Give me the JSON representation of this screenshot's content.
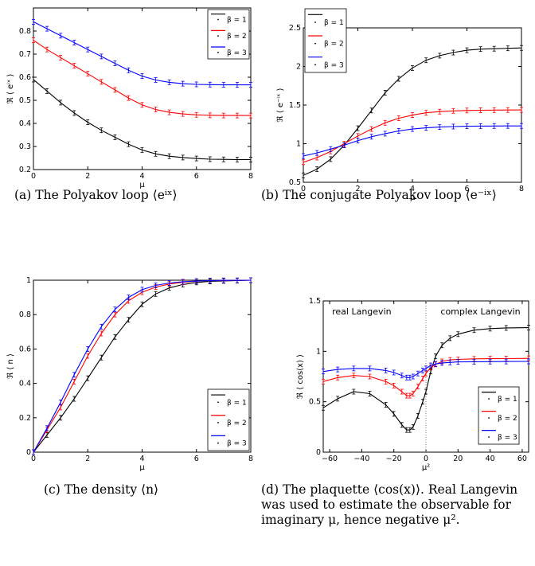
{
  "captions": {
    "a": "(a) The Polyakov loop ⟨eⁱˣ⟩",
    "b": "(b) The conjugate Polyakov loop ⟨e⁻ⁱˣ⟩",
    "c": "(c) The density ⟨n⟩",
    "d": "(d) The plaquette ⟨cos(x)⟩. Real Langevin was used to estimate the observable for imaginary μ, hence negative μ²."
  },
  "chart_data": [
    {
      "id": "a",
      "type": "line",
      "title": "",
      "xlabel": "μ",
      "ylabel": "ℜ ⟨ eⁱˣ ⟩",
      "xlim": [
        0,
        8
      ],
      "ylim": [
        0.2,
        0.9
      ],
      "xticks": [
        0,
        2,
        4,
        6,
        8
      ],
      "yticks": [
        0.2,
        0.3,
        0.4,
        0.5,
        0.6,
        0.7,
        0.8
      ],
      "legend": "top-right",
      "grid": false,
      "x": [
        0,
        0.5,
        1,
        1.5,
        2,
        2.5,
        3,
        3.5,
        4,
        4.5,
        5,
        5.5,
        6,
        6.5,
        7,
        7.5,
        8
      ],
      "series": [
        {
          "name": "β = 1",
          "color": "#000000",
          "values": [
            0.59,
            0.54,
            0.49,
            0.445,
            0.405,
            0.37,
            0.34,
            0.31,
            0.285,
            0.268,
            0.258,
            0.252,
            0.248,
            0.245,
            0.244,
            0.243,
            0.243
          ]
        },
        {
          "name": "β = 2",
          "color": "#ff0000",
          "values": [
            0.76,
            0.72,
            0.685,
            0.65,
            0.615,
            0.58,
            0.545,
            0.51,
            0.48,
            0.46,
            0.448,
            0.441,
            0.437,
            0.435,
            0.434,
            0.434,
            0.434
          ]
        },
        {
          "name": "β = 3",
          "color": "#0000ff",
          "values": [
            0.84,
            0.81,
            0.78,
            0.75,
            0.72,
            0.69,
            0.66,
            0.63,
            0.605,
            0.588,
            0.578,
            0.572,
            0.569,
            0.568,
            0.567,
            0.567,
            0.567
          ]
        }
      ]
    },
    {
      "id": "b",
      "type": "line",
      "title": "",
      "xlabel": "μ",
      "ylabel": "ℜ ⟨ e⁻ⁱˣ ⟩",
      "xlim": [
        0,
        8
      ],
      "ylim": [
        0.5,
        2.5
      ],
      "xticks": [
        0,
        2,
        4,
        6,
        8
      ],
      "yticks": [
        0.5,
        1,
        1.5,
        2,
        2.5
      ],
      "legend": "top-left",
      "grid": false,
      "x": [
        0,
        0.5,
        1,
        1.5,
        2,
        2.5,
        3,
        3.5,
        4,
        4.5,
        5,
        5.5,
        6,
        6.5,
        7,
        7.5,
        8
      ],
      "series": [
        {
          "name": "β = 1",
          "color": "#000000",
          "values": [
            0.59,
            0.67,
            0.8,
            0.98,
            1.2,
            1.43,
            1.66,
            1.84,
            1.98,
            2.08,
            2.14,
            2.18,
            2.21,
            2.225,
            2.23,
            2.235,
            2.24
          ]
        },
        {
          "name": "β = 2",
          "color": "#ff0000",
          "values": [
            0.76,
            0.82,
            0.9,
            1.0,
            1.1,
            1.19,
            1.27,
            1.33,
            1.37,
            1.4,
            1.415,
            1.425,
            1.43,
            1.433,
            1.435,
            1.436,
            1.437
          ]
        },
        {
          "name": "β = 3",
          "color": "#0000ff",
          "values": [
            0.84,
            0.88,
            0.93,
            0.98,
            1.04,
            1.09,
            1.13,
            1.165,
            1.19,
            1.205,
            1.215,
            1.222,
            1.226,
            1.228,
            1.229,
            1.23,
            1.23
          ]
        }
      ]
    },
    {
      "id": "c",
      "type": "line",
      "title": "",
      "xlabel": "μ",
      "ylabel": "ℜ ⟨ n ⟩",
      "xlim": [
        0,
        8
      ],
      "ylim": [
        0,
        1
      ],
      "xticks": [
        0,
        2,
        4,
        6,
        8
      ],
      "yticks": [
        0,
        0.2,
        0.4,
        0.6,
        0.8,
        1
      ],
      "legend": "bottom-right",
      "grid": false,
      "x": [
        0,
        0.5,
        1,
        1.5,
        2,
        2.5,
        3,
        3.5,
        4,
        4.5,
        5,
        5.5,
        6,
        6.5,
        7,
        7.5,
        8
      ],
      "series": [
        {
          "name": "β = 1",
          "color": "#000000",
          "values": [
            0,
            0.1,
            0.2,
            0.31,
            0.43,
            0.55,
            0.67,
            0.77,
            0.86,
            0.92,
            0.955,
            0.975,
            0.987,
            0.993,
            0.996,
            0.998,
            1.0
          ]
        },
        {
          "name": "β = 2",
          "color": "#ff0000",
          "values": [
            0,
            0.13,
            0.26,
            0.41,
            0.56,
            0.69,
            0.8,
            0.88,
            0.93,
            0.96,
            0.978,
            0.988,
            0.994,
            0.997,
            0.998,
            0.999,
            1.0
          ]
        },
        {
          "name": "β = 3",
          "color": "#0000ff",
          "values": [
            0,
            0.14,
            0.29,
            0.45,
            0.6,
            0.73,
            0.83,
            0.9,
            0.945,
            0.97,
            0.984,
            0.991,
            0.995,
            0.997,
            0.999,
            0.999,
            1.0
          ]
        }
      ]
    },
    {
      "id": "d",
      "type": "line",
      "title": "",
      "xlabel": "μ²",
      "ylabel": "ℜ ⟨ cos(x) ⟩",
      "xlim": [
        -64,
        64
      ],
      "ylim": [
        0,
        1.5
      ],
      "xticks": [
        -60,
        -40,
        -20,
        0,
        20,
        40,
        60
      ],
      "yticks": [
        0,
        0.5,
        1,
        1.5
      ],
      "legend": "bottom-right",
      "grid": false,
      "annotations": [
        "real Langevin",
        "complex Langevin"
      ],
      "vline_at": 0,
      "x": [
        -64,
        -55,
        -45,
        -35,
        -25,
        -20,
        -15,
        -12,
        -10,
        -8,
        -5,
        -2,
        0,
        3,
        6,
        10,
        15,
        20,
        30,
        40,
        50,
        64
      ],
      "series": [
        {
          "name": "β = 1",
          "color": "#000000",
          "values": [
            0.44,
            0.53,
            0.6,
            0.58,
            0.47,
            0.38,
            0.27,
            0.22,
            0.22,
            0.25,
            0.36,
            0.5,
            0.6,
            0.8,
            0.95,
            1.06,
            1.13,
            1.17,
            1.21,
            1.225,
            1.232,
            1.235
          ]
        },
        {
          "name": "β = 2",
          "color": "#ff0000",
          "values": [
            0.7,
            0.74,
            0.76,
            0.75,
            0.7,
            0.66,
            0.6,
            0.56,
            0.56,
            0.58,
            0.65,
            0.73,
            0.78,
            0.84,
            0.87,
            0.9,
            0.915,
            0.92,
            0.925,
            0.927,
            0.928,
            0.93
          ]
        },
        {
          "name": "β = 3",
          "color": "#0000ff",
          "values": [
            0.8,
            0.82,
            0.83,
            0.83,
            0.81,
            0.79,
            0.76,
            0.74,
            0.74,
            0.75,
            0.78,
            0.81,
            0.83,
            0.86,
            0.875,
            0.885,
            0.89,
            0.895,
            0.897,
            0.898,
            0.899,
            0.9
          ]
        }
      ]
    }
  ]
}
